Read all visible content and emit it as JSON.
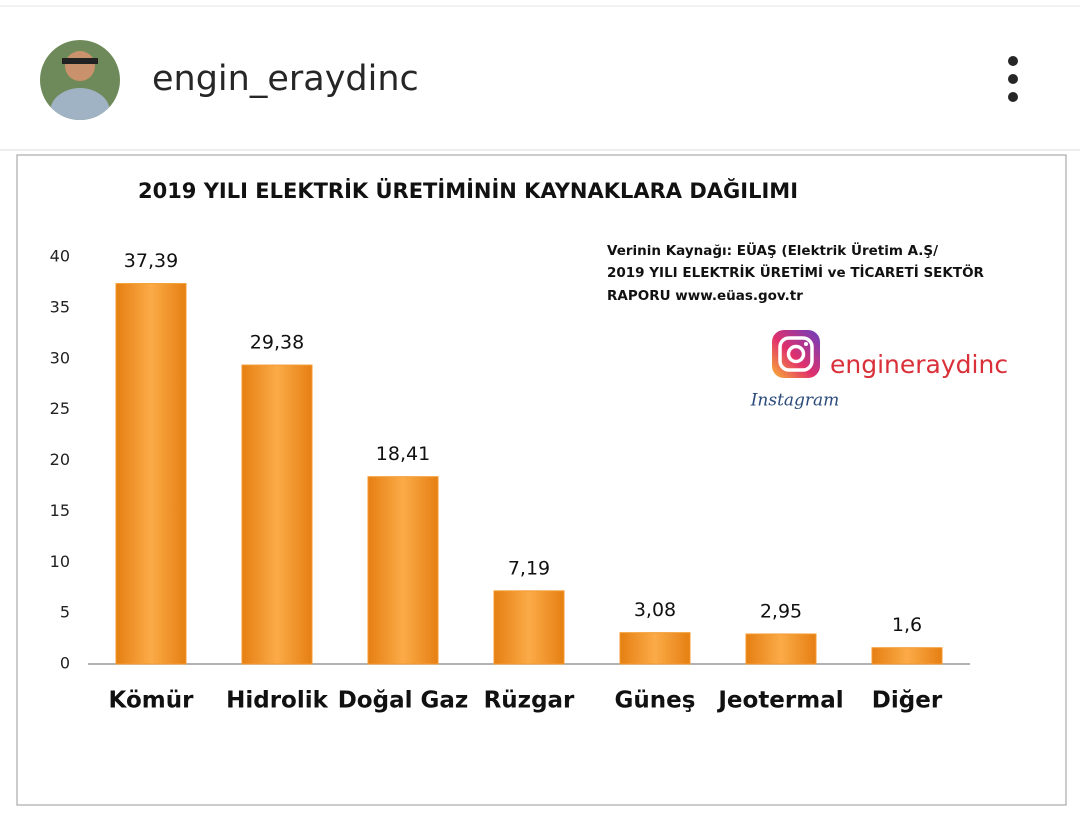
{
  "header": {
    "username": "engin_eraydinc"
  },
  "chart_data": {
    "type": "bar",
    "title": "2019 YILI ELEKTRİK ÜRETİMİNİN KAYNAKLARA DAĞILIMI",
    "source_lines": [
      "Verinin Kaynağı: EÜAŞ (Elektrik Üretim A.Ş/",
      "2019 YILI ELEKTRİK ÜRETİMİ ve TİCARETİ SEKTÖR",
      "RAPORU www.eüas.gov.tr"
    ],
    "watermark": {
      "handle": "engineraydinc",
      "brand": "Instagram"
    },
    "categories": [
      "Kömür",
      "Hidrolik",
      "Doğal Gaz",
      "Rüzgar",
      "Güneş",
      "Jeotermal",
      "Diğer"
    ],
    "values": [
      37.39,
      29.38,
      18.41,
      7.19,
      3.08,
      2.95,
      1.6
    ],
    "value_labels": [
      "37,39",
      "29,38",
      "18,41",
      "7,19",
      "3,08",
      "2,95",
      "1,6"
    ],
    "color": "#f59a2f",
    "ylim": [
      0,
      40
    ],
    "yticks": [
      0,
      5,
      10,
      15,
      20,
      25,
      30,
      35,
      40
    ],
    "grid": false
  }
}
